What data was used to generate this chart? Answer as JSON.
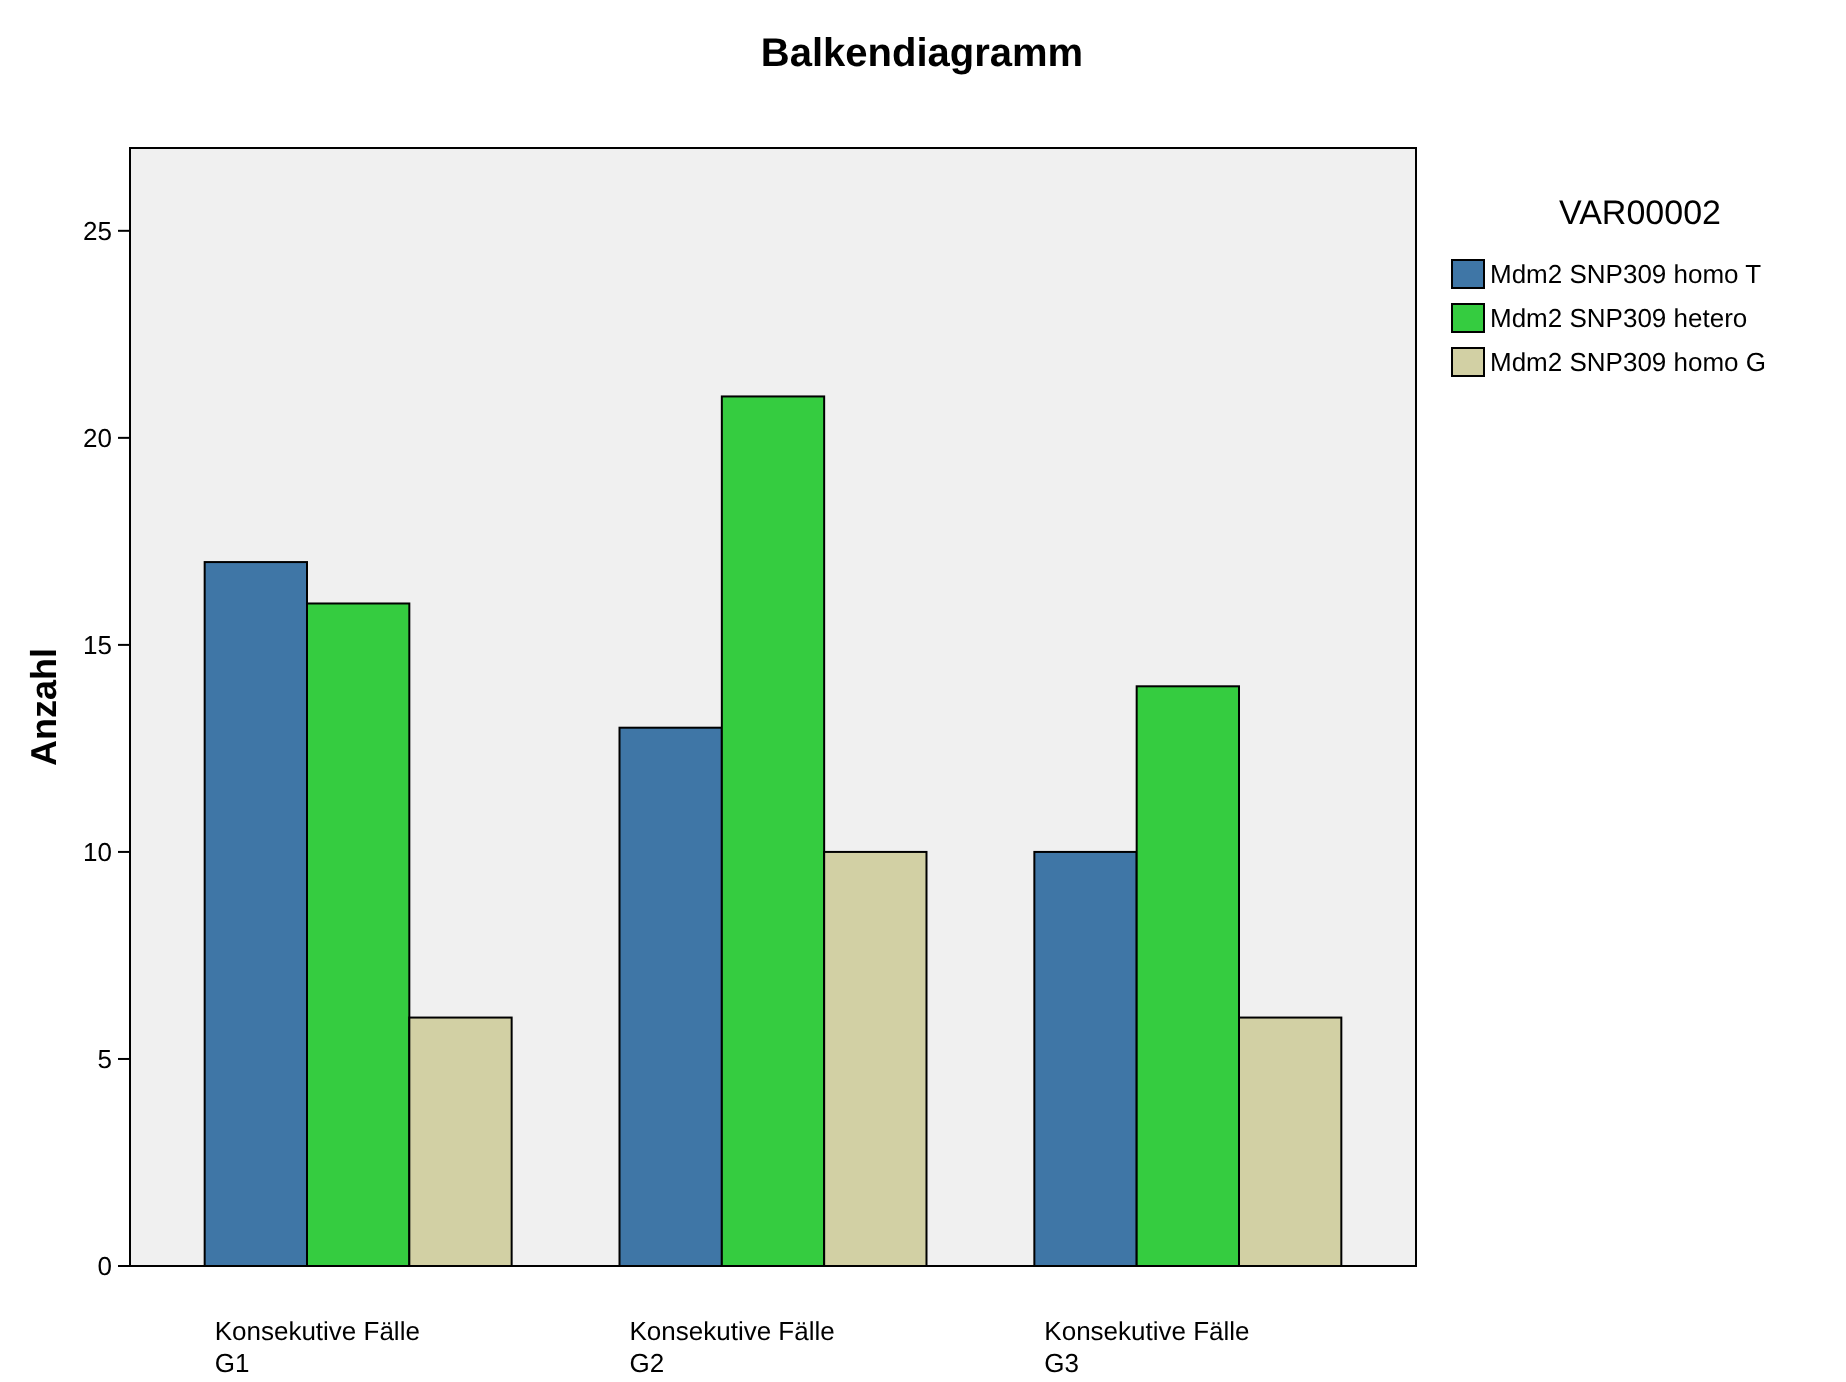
{
  "chart_data": {
    "type": "bar",
    "title": "Balkendiagramm",
    "ylabel": "Anzahl",
    "legend_title": "VAR00002",
    "categories": [
      "Konsekutive Fälle G1",
      "Konsekutive Fälle G2",
      "Konsekutive Fälle G3"
    ],
    "series": [
      {
        "name": "Mdm2 SNP309 homo T",
        "color": "#3f76a6",
        "values": [
          17,
          13,
          10
        ]
      },
      {
        "name": "Mdm2 SNP309 hetero",
        "color": "#35cc40",
        "values": [
          16,
          21,
          14
        ]
      },
      {
        "name": "Mdm2 SNP309 homo G",
        "color": "#d2d0a4",
        "values": [
          6,
          10,
          6
        ]
      }
    ],
    "ylim": [
      0,
      27
    ],
    "yticks": [
      0,
      5,
      10,
      15,
      20,
      25
    ],
    "legend": "right",
    "grid": false
  }
}
